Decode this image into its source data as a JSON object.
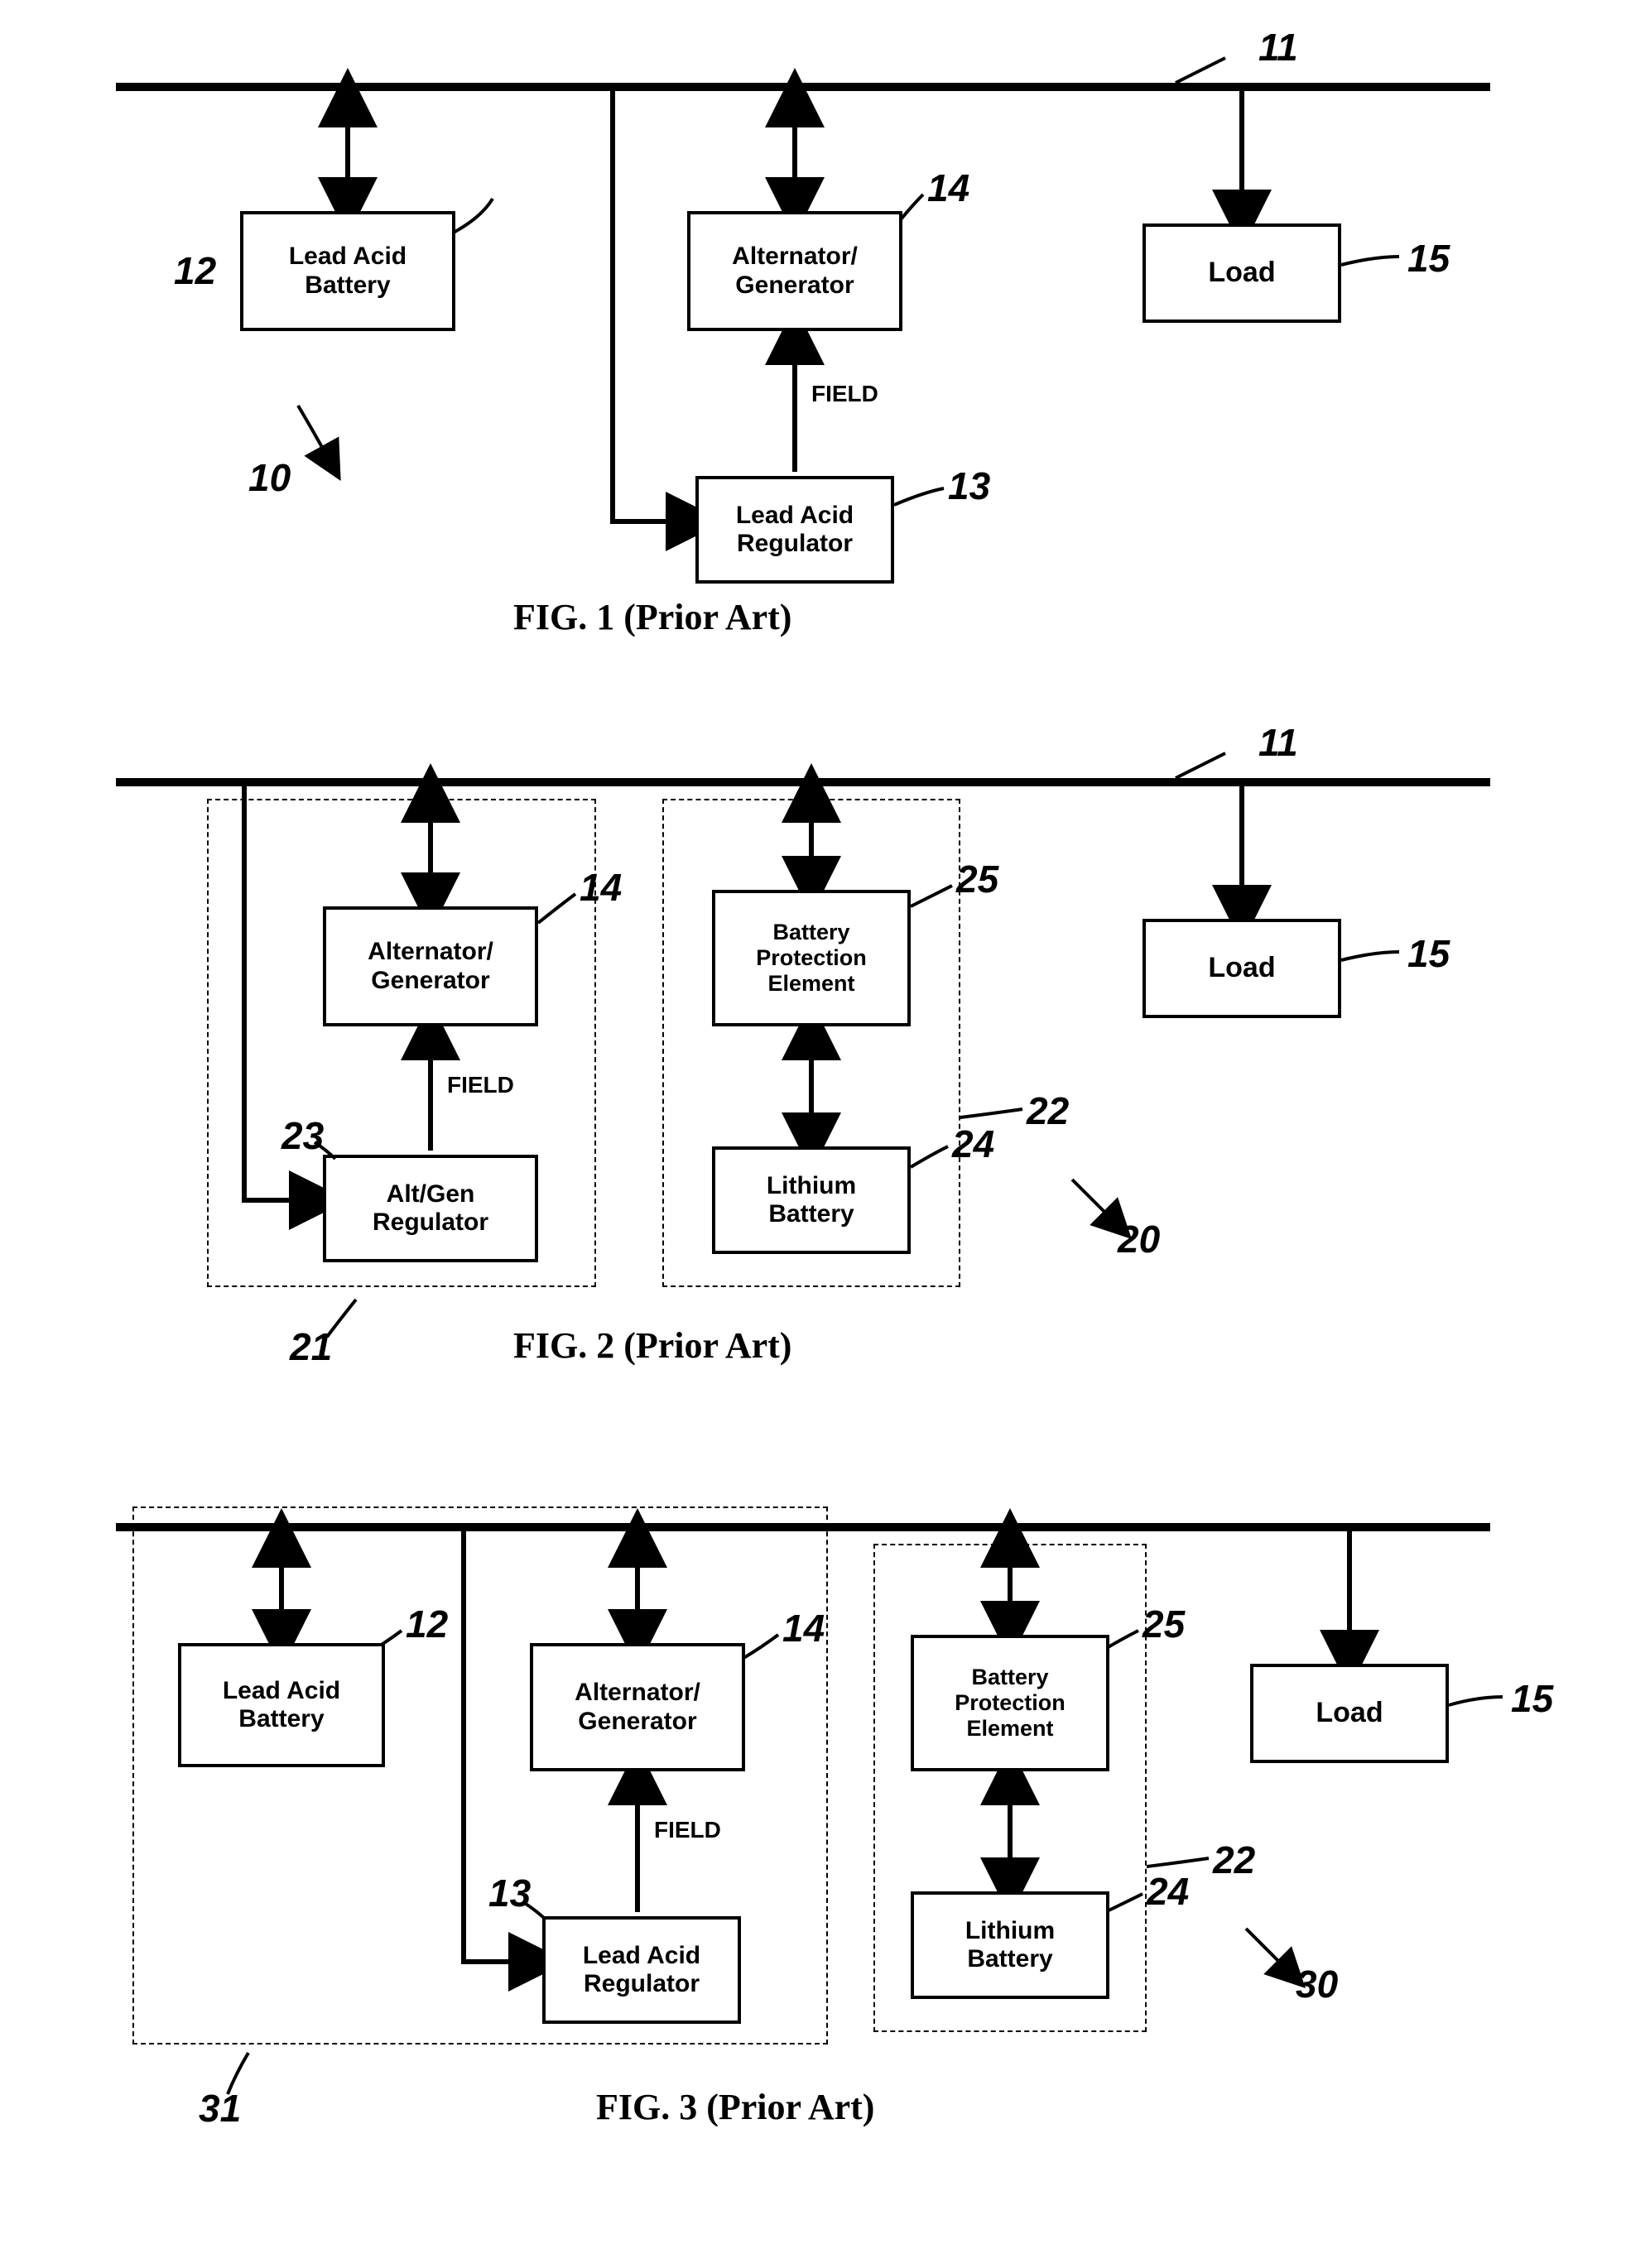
{
  "colors": {
    "line": "#000000",
    "bg": "#ffffff",
    "box_border": "#000000",
    "dash": "#000000"
  },
  "style": {
    "box_border_width": 4,
    "line_width": 6,
    "arrow_size": 16,
    "dash_pattern": "8 8",
    "box_font_size": 30,
    "caption_font_size": 44,
    "ref_font_size": 46
  },
  "fig1": {
    "caption": "FIG. 1 (Prior Art)",
    "bus_ref": "11",
    "system_ref": "10",
    "field_label": "FIELD",
    "boxes": {
      "lead_acid_battery": {
        "label": "Lead Acid\nBattery",
        "ref": "12"
      },
      "alternator": {
        "label": "Alternator/\nGenerator",
        "ref": "14"
      },
      "load": {
        "label": "Load",
        "ref": "15"
      },
      "lead_acid_regulator": {
        "label": "Lead Acid\nRegulator",
        "ref": "13"
      }
    }
  },
  "fig2": {
    "caption": "FIG. 2 (Prior Art)",
    "bus_ref": "11",
    "system_ref": "20",
    "left_group_ref": "21",
    "right_group_ref": "22",
    "field_label": "FIELD",
    "boxes": {
      "alternator": {
        "label": "Alternator/\nGenerator",
        "ref": "14"
      },
      "altgen_regulator": {
        "label": "Alt/Gen\nRegulator",
        "ref": "23"
      },
      "battery_protection": {
        "label": "Battery\nProtection\nElement",
        "ref": "25"
      },
      "lithium": {
        "label": "Lithium\nBattery",
        "ref": "24"
      },
      "load": {
        "label": "Load",
        "ref": "15"
      }
    }
  },
  "fig3": {
    "caption": "FIG. 3 (Prior Art)",
    "system_ref": "30",
    "left_group_ref": "31",
    "right_group_ref": "22",
    "field_label": "FIELD",
    "boxes": {
      "lead_acid_battery": {
        "label": "Lead Acid\nBattery",
        "ref": "12"
      },
      "alternator": {
        "label": "Alternator/\nGenerator",
        "ref": "14"
      },
      "lead_acid_regulator": {
        "label": "Lead Acid\nRegulator",
        "ref": "13"
      },
      "battery_protection": {
        "label": "Battery\nProtection\nElement",
        "ref": "25"
      },
      "lithium": {
        "label": "Lithium\nBattery",
        "ref": "24"
      },
      "load": {
        "label": "Load",
        "ref": "15"
      }
    }
  }
}
